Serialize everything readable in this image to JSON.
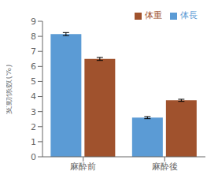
{
  "chart_data": {
    "type": "bar",
    "categories": [
      "麻酔前",
      "麻酔後"
    ],
    "series": [
      {
        "name": "体長",
        "color": "#5b9bd5",
        "values": [
          8.15,
          2.6
        ],
        "errors": [
          0.1,
          0.07
        ]
      },
      {
        "name": "体重",
        "color": "#a0522d",
        "values": [
          6.5,
          3.75
        ],
        "errors": [
          0.1,
          0.07
        ]
      }
    ],
    "ylabel": "変動係数(%)",
    "ylim": [
      0,
      9
    ],
    "yticks": [
      0,
      1,
      2,
      3,
      4,
      5,
      6,
      7,
      8,
      9
    ],
    "grid": false,
    "legend": "upper right"
  }
}
